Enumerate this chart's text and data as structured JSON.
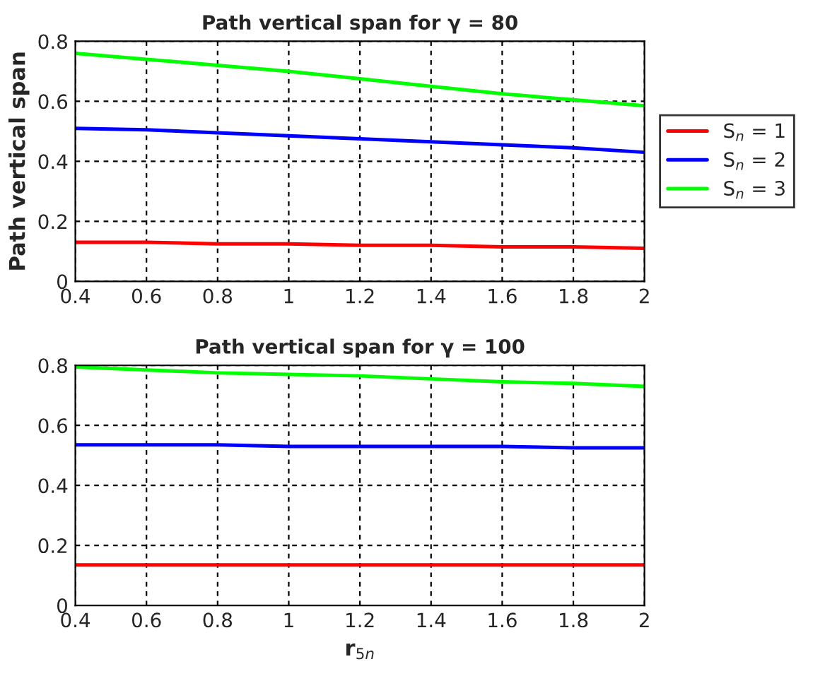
{
  "chart_data": [
    {
      "type": "line",
      "title": "Path vertical span for γ = 80",
      "ylabel": "Path vertical span",
      "x": [
        0.4,
        0.6,
        0.8,
        1.0,
        1.2,
        1.4,
        1.6,
        1.8,
        2.0
      ],
      "series": [
        {
          "name": "S$_{n}$ = 1",
          "color": "#ff0000",
          "values": [
            0.13,
            0.13,
            0.125,
            0.125,
            0.12,
            0.12,
            0.115,
            0.115,
            0.11
          ]
        },
        {
          "name": "S$_{n}$ = 2",
          "color": "#0000ff",
          "values": [
            0.51,
            0.505,
            0.495,
            0.485,
            0.475,
            0.465,
            0.455,
            0.445,
            0.43
          ]
        },
        {
          "name": "S$_{n}$ = 3",
          "color": "#00ff00",
          "values": [
            0.76,
            0.74,
            0.72,
            0.7,
            0.675,
            0.65,
            0.625,
            0.605,
            0.585
          ]
        }
      ],
      "xlim": [
        0.4,
        2
      ],
      "xticks": [
        0.4,
        0.6,
        0.8,
        1,
        1.2,
        1.4,
        1.6,
        1.8,
        2
      ],
      "ylim": [
        0,
        0.8
      ],
      "yticks": [
        0,
        0.2,
        0.4,
        0.6,
        0.8
      ],
      "grid": true,
      "legend": "right"
    },
    {
      "type": "line",
      "title": "Path vertical span for γ = 100",
      "xlabel": "r$_{5n}$",
      "x": [
        0.4,
        0.6,
        0.8,
        1.0,
        1.2,
        1.4,
        1.6,
        1.8,
        2.0
      ],
      "series": [
        {
          "color": "#ff0000",
          "values": [
            0.135,
            0.135,
            0.135,
            0.135,
            0.135,
            0.135,
            0.135,
            0.135,
            0.135
          ]
        },
        {
          "color": "#0000ff",
          "values": [
            0.535,
            0.535,
            0.535,
            0.53,
            0.53,
            0.53,
            0.53,
            0.525,
            0.525
          ]
        },
        {
          "color": "#00ff00",
          "values": [
            0.795,
            0.785,
            0.775,
            0.77,
            0.765,
            0.755,
            0.745,
            0.74,
            0.73
          ]
        }
      ],
      "xlim": [
        0.4,
        2
      ],
      "xticks": [
        0.4,
        0.6,
        0.8,
        1,
        1.2,
        1.4,
        1.6,
        1.8,
        2
      ],
      "ylim": [
        0,
        0.8
      ],
      "yticks": [
        0,
        0.2,
        0.4,
        0.6,
        0.8
      ],
      "grid": true
    }
  ]
}
